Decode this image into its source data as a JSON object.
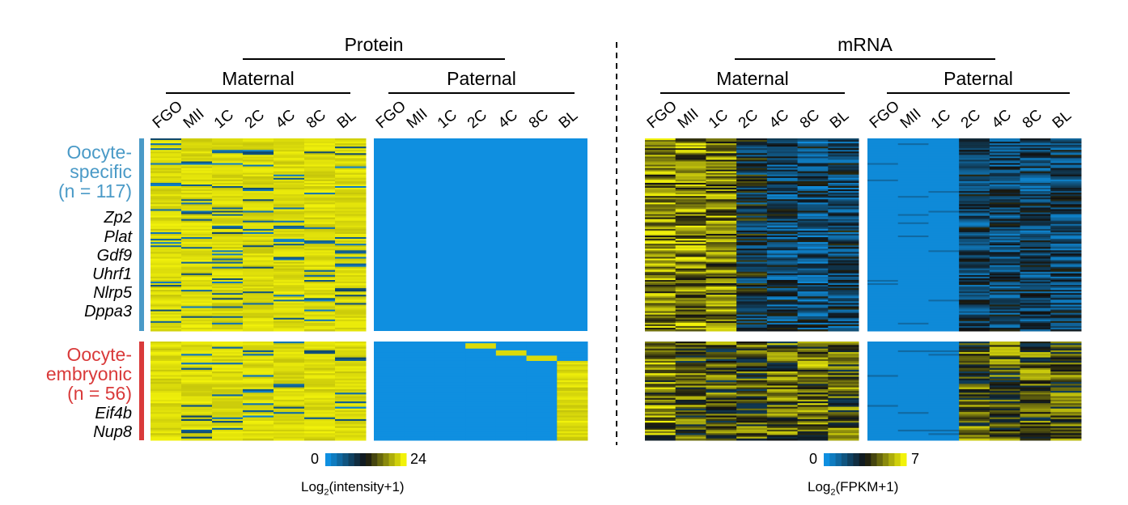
{
  "protein": {
    "title": "Protein",
    "maternal": {
      "label": "Maternal",
      "columns": [
        "FGO",
        "MII",
        "1C",
        "2C",
        "4C",
        "8C",
        "BL"
      ]
    },
    "paternal": {
      "label": "Paternal",
      "columns": [
        "FGO",
        "MII",
        "1C",
        "2C",
        "4C",
        "8C",
        "BL"
      ]
    },
    "scale": {
      "min": "0",
      "max": "24",
      "title_pre": "Log",
      "title_sub": "2",
      "title_post": "(intensity+1)"
    }
  },
  "mrna": {
    "title": "mRNA",
    "maternal": {
      "label": "Maternal",
      "columns": [
        "FGO",
        "MII",
        "1C",
        "2C",
        "4C",
        "8C",
        "BL"
      ]
    },
    "paternal": {
      "label": "Paternal",
      "columns": [
        "FGO",
        "MII",
        "1C",
        "2C",
        "4C",
        "8C",
        "BL"
      ]
    },
    "scale": {
      "min": "0",
      "max": "7",
      "title_pre": "Log",
      "title_sub": "2",
      "title_post": "(FPKM+1)"
    }
  },
  "groups": [
    {
      "lines": [
        "Oocyte-",
        "specific",
        "(n = 117)"
      ],
      "color": "#4a9ac7",
      "genes": [
        "Zp2",
        "Plat",
        "Gdf9",
        "Uhrf1",
        "Nlrp5",
        "Dppa3"
      ]
    },
    {
      "lines": [
        "Oocyte-",
        "embryonic",
        "(n = 56)"
      ],
      "color": "#d93a3a",
      "genes": [
        "Eif4b",
        "Nup8"
      ]
    }
  ],
  "colors": {
    "low": "#0f8fe0",
    "mid": "#111111",
    "high": "#f2f20a"
  },
  "chart_data": {
    "type": "heatmap",
    "panels": [
      {
        "name": "Protein Maternal",
        "columns": [
          "FGO",
          "MII",
          "1C",
          "2C",
          "4C",
          "8C",
          "BL"
        ],
        "scale": [
          0,
          24
        ],
        "pattern": "mostly high (yellow) with scattered low (blue) rows"
      },
      {
        "name": "Protein Paternal",
        "columns": [
          "FGO",
          "MII",
          "1C",
          "2C",
          "4C",
          "8C",
          "BL"
        ],
        "scale": [
          0,
          24
        ],
        "pattern": "oocyte-specific all low; oocyte-embryonic appears progressively from 2C, mostly at BL"
      },
      {
        "name": "mRNA Maternal",
        "columns": [
          "FGO",
          "MII",
          "1C",
          "2C",
          "4C",
          "8C",
          "BL"
        ],
        "scale": [
          0,
          7
        ],
        "pattern": "high in FGO/MII/1C, decreasing from 2C onward"
      },
      {
        "name": "mRNA Paternal",
        "columns": [
          "FGO",
          "MII",
          "1C",
          "2C",
          "4C",
          "8C",
          "BL"
        ],
        "scale": [
          0,
          7
        ],
        "pattern": "low in FGO/MII/1C, expressed from 2C onward"
      }
    ],
    "row_groups": [
      {
        "name": "Oocyte-specific",
        "n": 117
      },
      {
        "name": "Oocyte-embryonic",
        "n": 56
      }
    ]
  }
}
